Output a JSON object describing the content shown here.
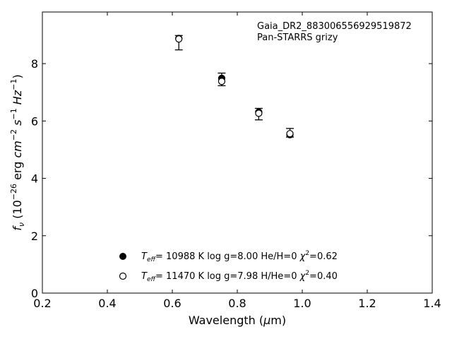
{
  "chart_data": {
    "type": "scatter",
    "title": "",
    "xlabel": "Wavelength (μm)",
    "ylabel": "f_ν (10^-26 erg cm^-2 s^-1 Hz^-1)",
    "xlim": [
      0.2,
      1.4
    ],
    "ylim": [
      0,
      9.8
    ],
    "xticks": [
      0.2,
      0.4,
      0.6,
      0.8,
      1.0,
      1.2,
      1.4
    ],
    "xtick_labels": [
      "0.2",
      "0.4",
      "0.6",
      "0.8",
      "1.0",
      "1.2",
      "1.4"
    ],
    "yticks": [
      0,
      2,
      4,
      6,
      8
    ],
    "ytick_labels": [
      "0",
      "2",
      "4",
      "6",
      "8"
    ],
    "grid": false,
    "annotations": [
      "Gaia_DR2_883006556929519872",
      "Pan-STARRS grizy"
    ],
    "observed": {
      "x": [
        0.62,
        0.752,
        0.866,
        0.962
      ],
      "y": [
        8.84,
        7.45,
        6.24,
        5.54
      ],
      "yerr_low": [
        0.36,
        0.22,
        0.2,
        0.1
      ],
      "yerr_high": [
        0.14,
        0.22,
        0.2,
        0.2
      ]
    },
    "series": [
      {
        "marker": "filled",
        "x": [
          0.62,
          0.752,
          0.866,
          0.962
        ],
        "y": [
          8.88,
          7.49,
          6.31,
          5.52
        ],
        "label_parts": {
          "teff": "= 10988 K",
          "logg": "log g=8.00",
          "comp": "He/H=0",
          "chi": "=0.62"
        }
      },
      {
        "marker": "open",
        "x": [
          0.62,
          0.752,
          0.866,
          0.962
        ],
        "y": [
          8.86,
          7.38,
          6.27,
          5.56
        ],
        "label_parts": {
          "teff": "= 11470 K",
          "logg": "log g=7.98",
          "comp": "H/He=0",
          "chi": "=0.40"
        }
      }
    ],
    "legend_location": "lower-center",
    "colors": {
      "marker": "#000000",
      "axis": "#000000",
      "background": "#ffffff"
    }
  }
}
